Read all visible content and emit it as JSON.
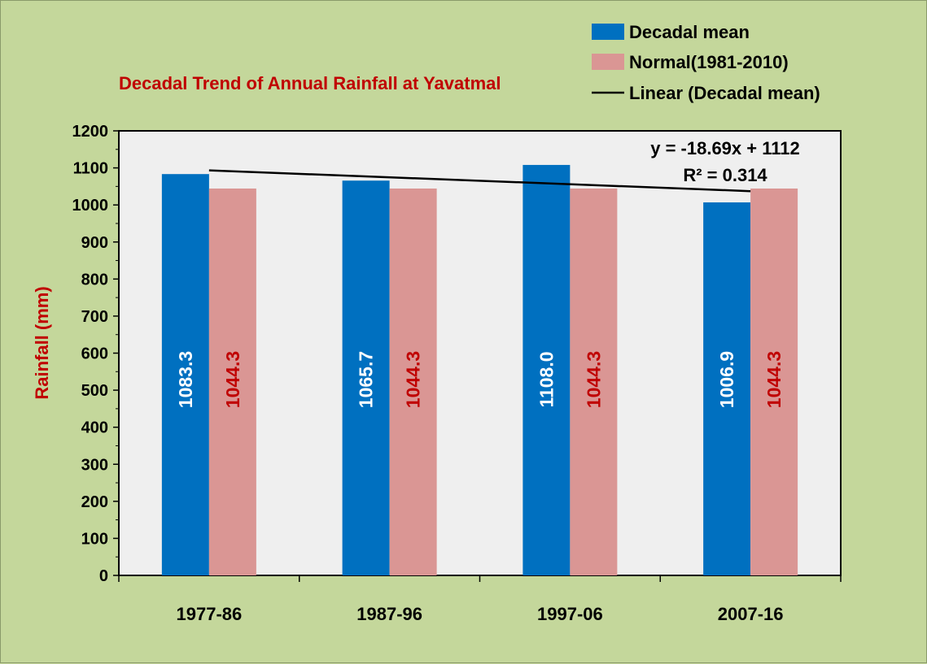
{
  "chart_data": {
    "type": "bar",
    "title": "Decadal Trend of Annual Rainfall at Yavatmal",
    "xlabel": "",
    "ylabel": "Rainfall (mm)",
    "categories": [
      "1977-86",
      "1987-96",
      "1997-06",
      "2007-16"
    ],
    "series": [
      {
        "name": "Decadal mean",
        "values": [
          1083.3,
          1065.7,
          1108.0,
          1006.9
        ],
        "labels": [
          "1083.3",
          "1065.7",
          "1108.0",
          "1006.9"
        ],
        "color": "#0070c0",
        "label_color": "#ffffff"
      },
      {
        "name": "Normal(1981-2010)",
        "values": [
          1044.3,
          1044.3,
          1044.3,
          1044.3
        ],
        "labels": [
          "1044.3",
          "1044.3",
          "1044.3",
          "1044.3"
        ],
        "color": "#da9694",
        "label_color": "#c00000"
      }
    ],
    "trendline": {
      "name": "Linear (Decadal mean)",
      "slope": -18.69,
      "intercept": 1112,
      "equation": "y = -18.69x + 1112",
      "r2_text": "R² = 0.314",
      "color": "#000000"
    },
    "ylim": [
      0,
      1200
    ],
    "yticks": [
      0,
      100,
      200,
      300,
      400,
      500,
      600,
      700,
      800,
      900,
      1000,
      1100,
      1200
    ],
    "grid": false,
    "legend_position": "top-right",
    "colors": {
      "background": "#c4d79b",
      "plot_area": "#efefef",
      "title": "#c00000",
      "ylabel": "#c00000"
    }
  }
}
